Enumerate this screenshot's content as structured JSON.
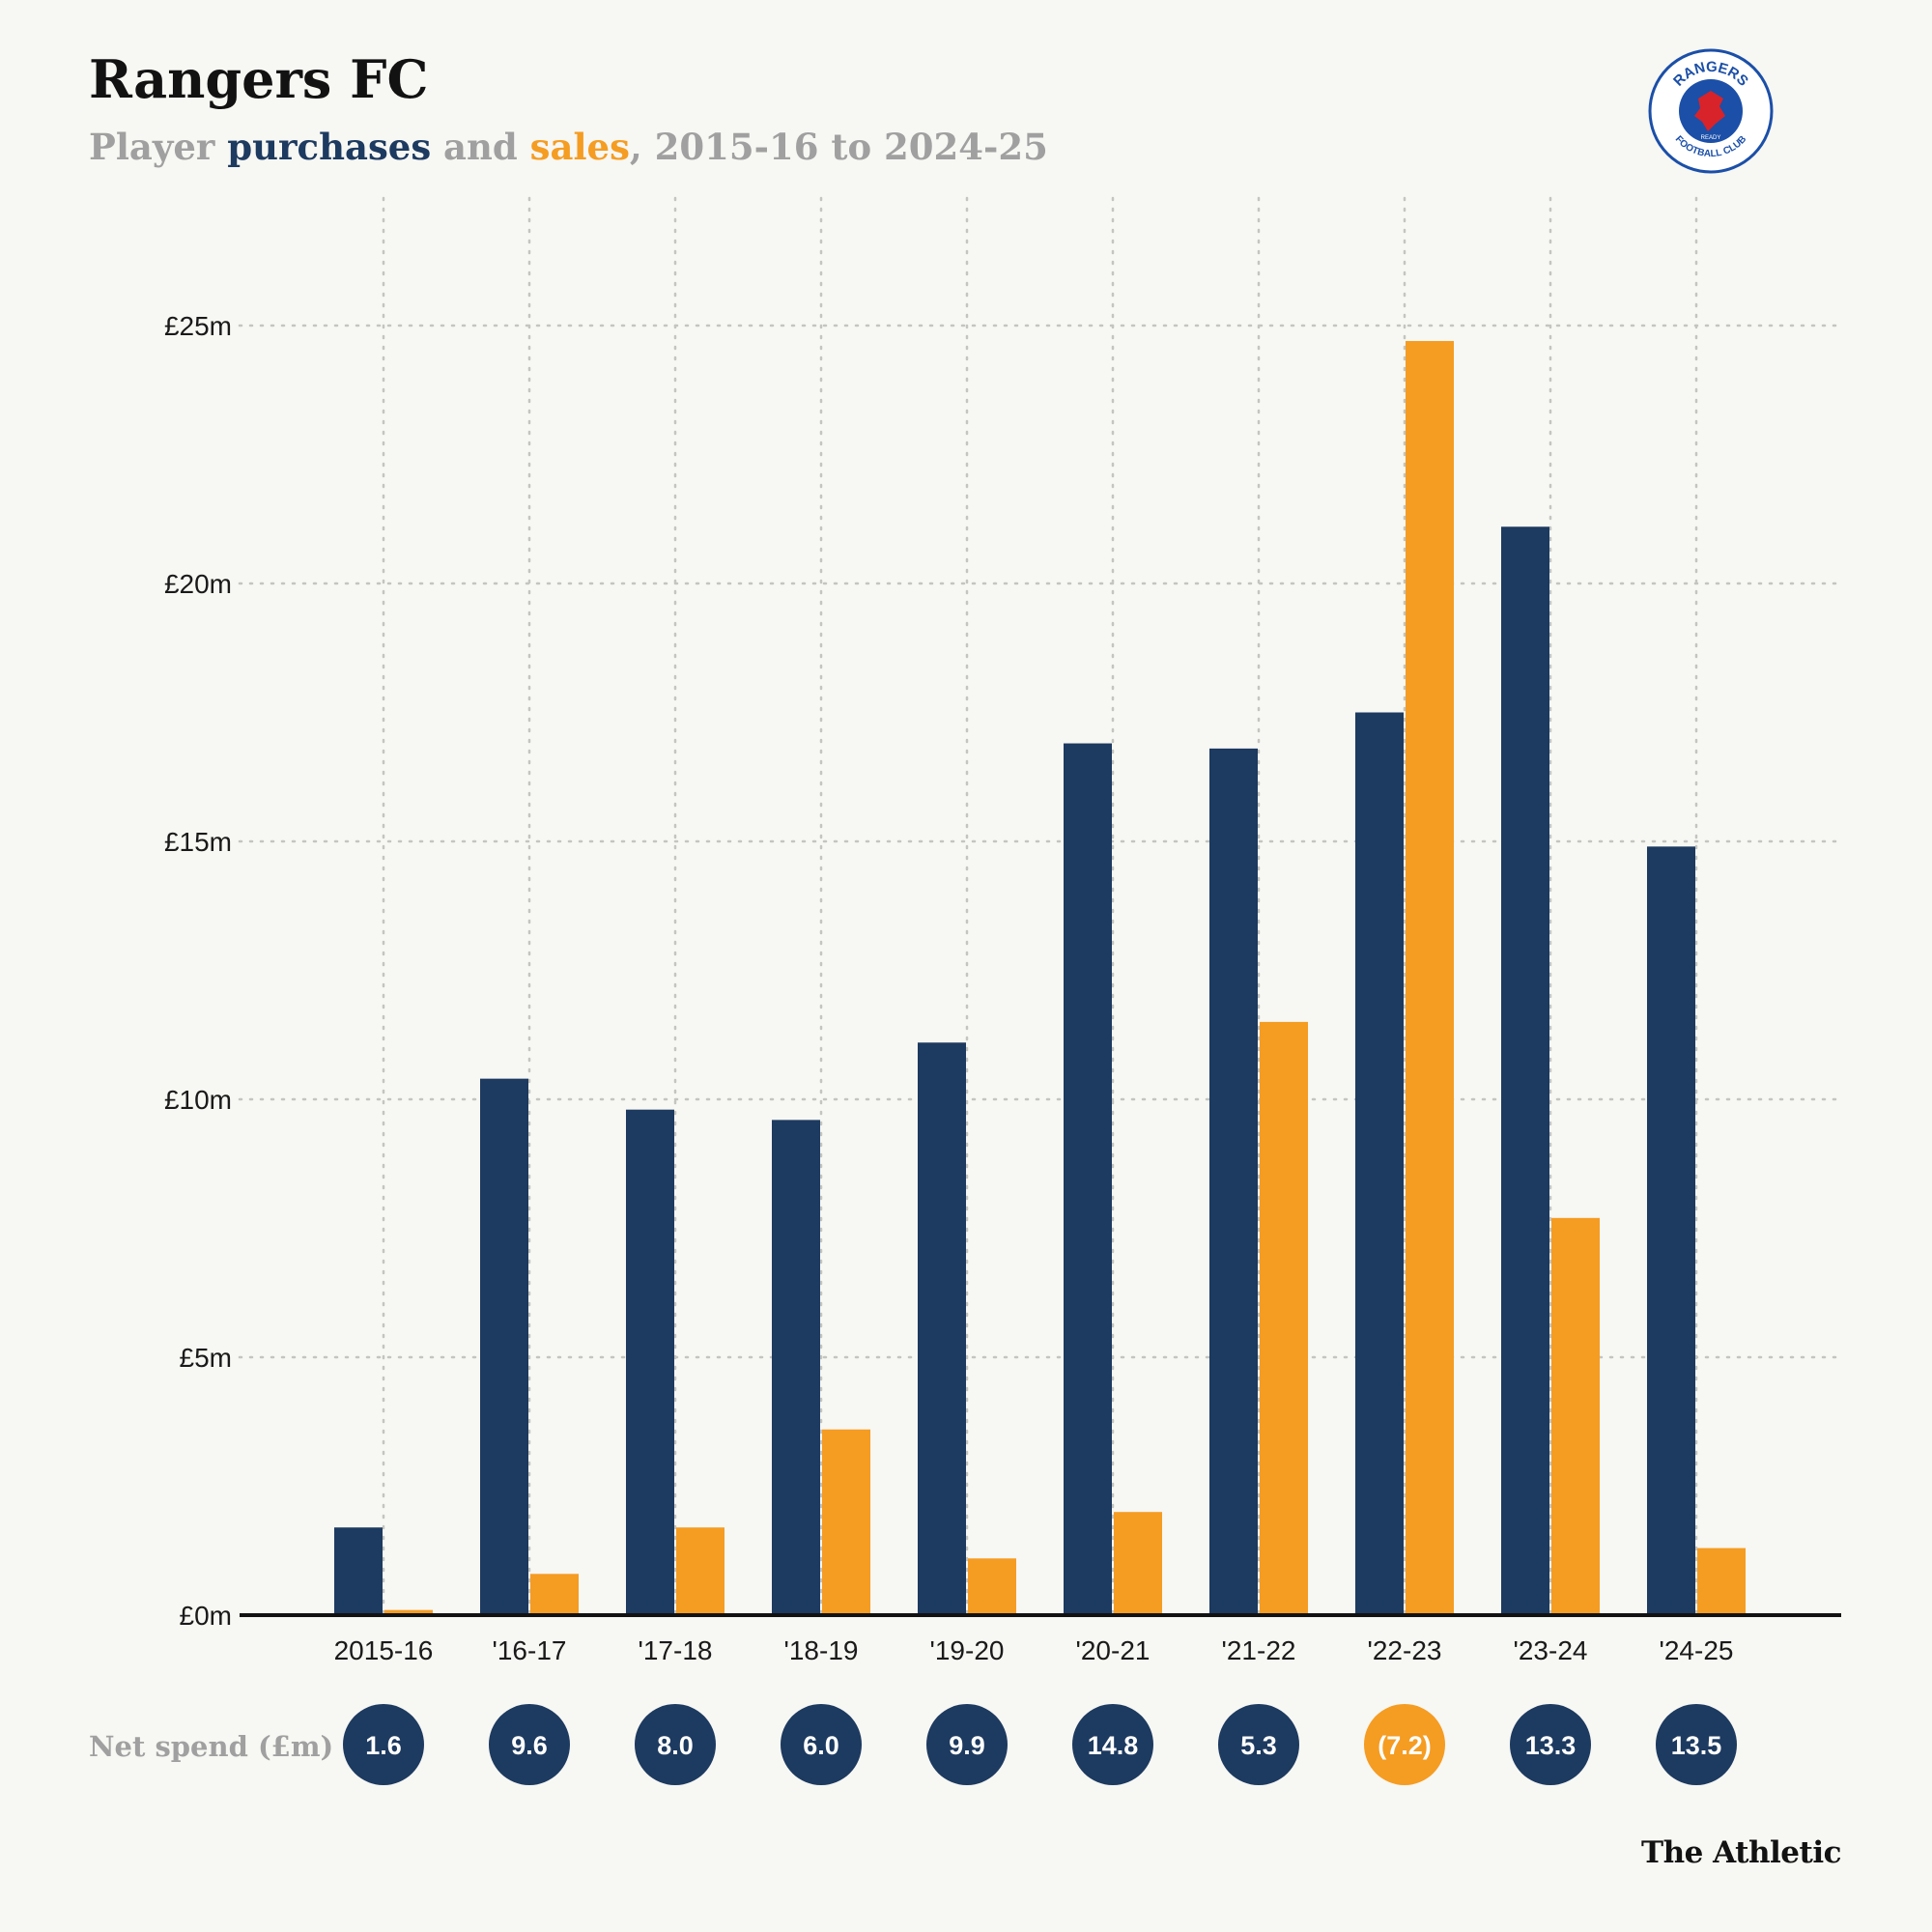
{
  "title": "Rangers FC",
  "subtitle": {
    "prefix": "Player ",
    "purchases": "purchases",
    "and": " and ",
    "sales": "sales",
    "suffix": ", 2015-16 to 2024-25"
  },
  "logo": {
    "ring_top": "RANGERS",
    "ring_bottom": "FOOTBALL CLUB",
    "motto": "READY"
  },
  "brand": "The Athletic",
  "colors": {
    "purchases": "#1d3a60",
    "sales": "#f59c22",
    "background": "#f7f7f3",
    "muted": "#a0a0a0"
  },
  "chart_data": {
    "type": "bar",
    "title": "Rangers FC",
    "subtitle": "Player purchases and sales, 2015-16 to 2024-25",
    "categories": [
      "2015-16",
      "'16-17",
      "'17-18",
      "'18-19",
      "'19-20",
      "'20-21",
      "'21-22",
      "'22-23",
      "'23-24",
      "'24-25"
    ],
    "series": [
      {
        "name": "purchases",
        "values": [
          1.7,
          10.4,
          9.8,
          9.6,
          11.1,
          16.9,
          16.8,
          17.5,
          21.1,
          14.9
        ]
      },
      {
        "name": "sales",
        "values": [
          0.1,
          0.8,
          1.7,
          3.6,
          1.1,
          2.0,
          11.5,
          24.7,
          7.7,
          1.3
        ]
      }
    ],
    "yticks": [
      0,
      5,
      10,
      15,
      20,
      25
    ],
    "ytick_labels": [
      "£0m",
      "£5m",
      "£10m",
      "£15m",
      "£20m",
      "£25m"
    ],
    "ylim": [
      0,
      27.5
    ],
    "grid": true,
    "xlabel": "",
    "ylabel": "",
    "net_spend_label": "Net spend (£m)",
    "net_spend": [
      "1.6",
      "9.6",
      "8.0",
      "6.0",
      "9.9",
      "14.8",
      "5.3",
      "(7.2)",
      "13.3",
      "13.5"
    ],
    "net_spend_negative": [
      false,
      false,
      false,
      false,
      false,
      false,
      false,
      true,
      false,
      false
    ]
  }
}
